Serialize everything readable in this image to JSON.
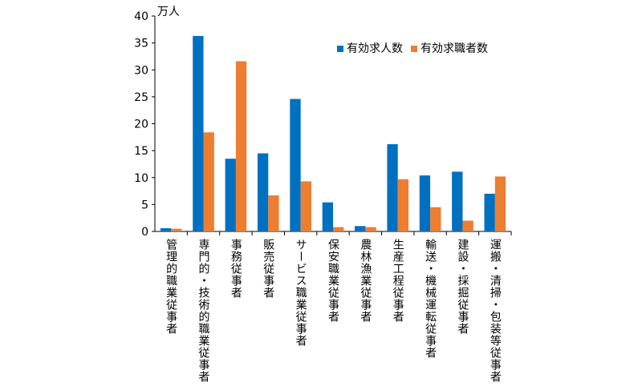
{
  "chart_data": {
    "type": "bar",
    "unit_label": "万人",
    "ylim": [
      0,
      40
    ],
    "yticks": [
      0,
      5,
      10,
      15,
      20,
      25,
      30,
      35,
      40
    ],
    "grid": false,
    "legend_position": "top-right",
    "categories": [
      "管理的職業従事者",
      "専門的・技術的職業従事者",
      "事務従事者",
      "販売従事者",
      "サービス職業従事者",
      "保安職業従事者",
      "農林漁業従事者",
      "生産工程従事者",
      "輸送・機械運転従事者",
      "建設・採掘従事者",
      "運搬・清掃・包装等従事者"
    ],
    "series": [
      {
        "name": "有効求人数",
        "color": "#0070C0",
        "values": [
          0.6,
          36.3,
          13.5,
          14.5,
          24.6,
          5.4,
          1.0,
          16.2,
          10.4,
          11.1,
          7.0
        ]
      },
      {
        "name": "有効求職者数",
        "color": "#ED7D31",
        "values": [
          0.5,
          18.4,
          31.6,
          6.7,
          9.3,
          0.8,
          0.8,
          9.7,
          4.5,
          2.0,
          10.2
        ]
      }
    ]
  }
}
